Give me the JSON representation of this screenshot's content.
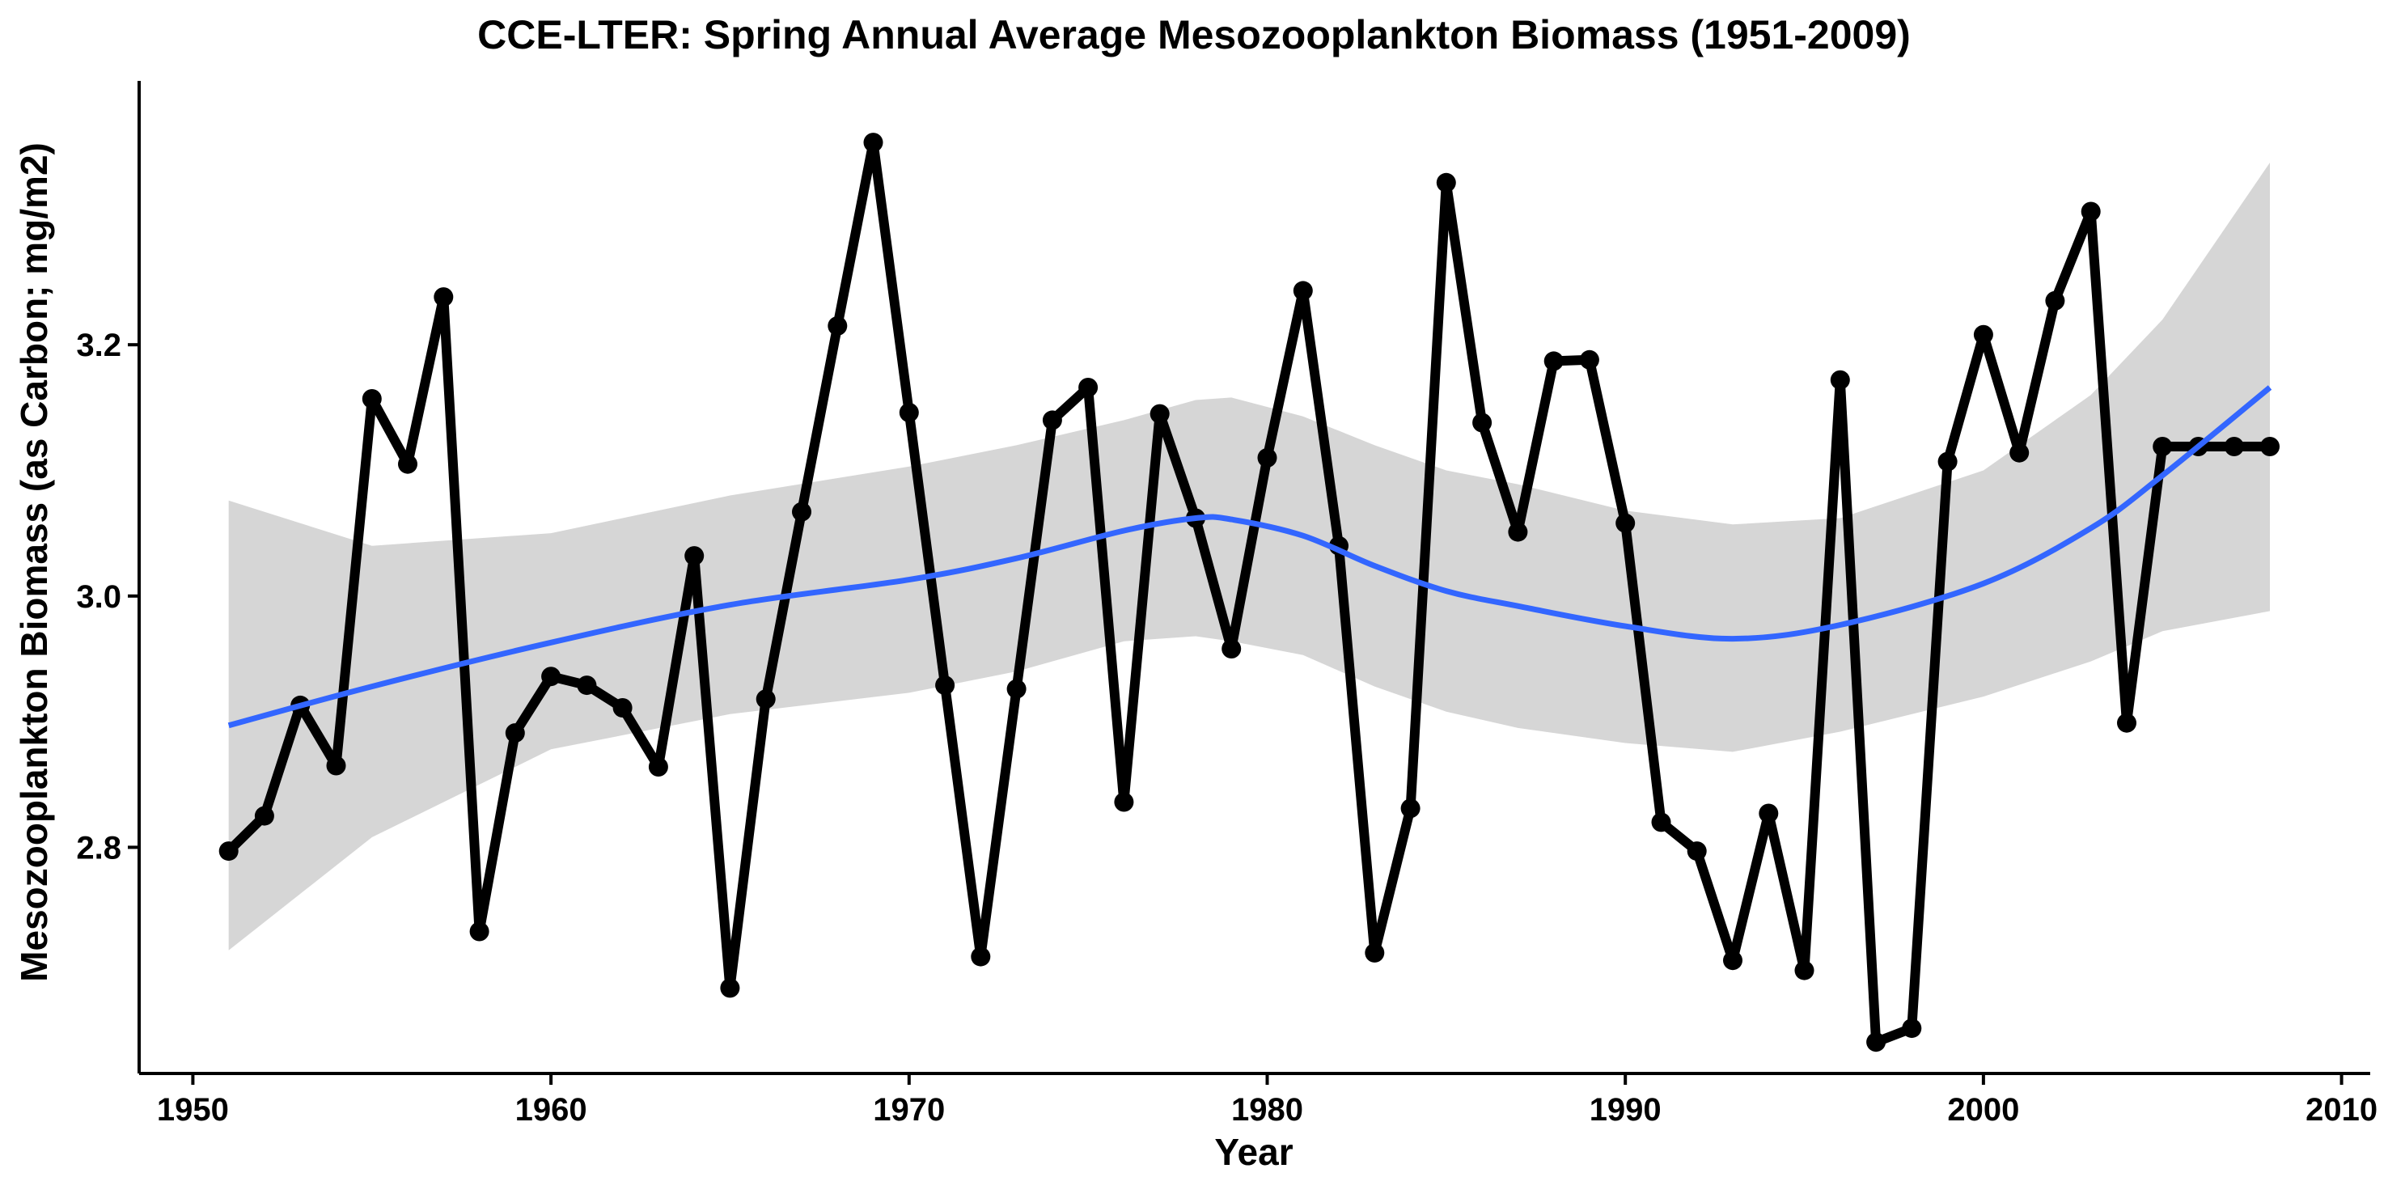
{
  "chart_data": {
    "type": "line",
    "title": "CCE-LTER: Spring Annual Average Mesozooplankton Biomass (1951-2009)",
    "xlabel": "Year",
    "ylabel": "Mesozooplankton Biomass (as Carbon; mg/m2)",
    "xlim": [
      1948.5,
      2010.8
    ],
    "ylim": [
      2.62,
      3.41
    ],
    "x_ticks": [
      1950,
      1960,
      1970,
      1980,
      1990,
      2000,
      2010
    ],
    "y_ticks": [
      2.8,
      3.0,
      3.2
    ],
    "x_tick_labels": [
      "1950",
      "1960",
      "1970",
      "1980",
      "1990",
      "2000",
      "2010"
    ],
    "y_tick_labels": [
      "2.8",
      "3.0",
      "3.2"
    ],
    "grid": false,
    "colors": {
      "observed_line": "#000000",
      "smooth_line": "#3366FF",
      "confidence_band": "#999999"
    },
    "series": [
      {
        "role": "observed",
        "x": [
          1951,
          1952,
          1953,
          1954,
          1955,
          1956,
          1957,
          1958,
          1959,
          1960,
          1961,
          1962,
          1963,
          1964,
          1965,
          1966,
          1967,
          1968,
          1969,
          1970,
          1971,
          1972,
          1973,
          1974,
          1975,
          1976,
          1977,
          1978,
          1979,
          1980,
          1981,
          1982,
          1983,
          1984,
          1985,
          1986,
          1987,
          1988,
          1989,
          1990,
          1991,
          1992,
          1993,
          1994,
          1995,
          1996,
          1997,
          1998,
          1999,
          2000,
          2001,
          2002,
          2003,
          2004,
          2005,
          2006,
          2007,
          2008
        ],
        "values": [
          2.797,
          2.825,
          2.913,
          2.865,
          3.157,
          3.105,
          3.238,
          2.733,
          2.891,
          2.936,
          2.929,
          2.911,
          2.864,
          3.032,
          2.688,
          2.918,
          3.067,
          3.215,
          3.361,
          3.146,
          2.929,
          2.713,
          2.926,
          3.14,
          3.166,
          2.836,
          3.145,
          3.062,
          2.958,
          3.11,
          3.243,
          3.04,
          2.716,
          2.831,
          3.329,
          3.138,
          3.051,
          3.187,
          3.188,
          3.058,
          2.82,
          2.797,
          2.71,
          2.827,
          2.702,
          3.172,
          2.645,
          2.656,
          3.107,
          3.208,
          3.114,
          3.235,
          3.306,
          2.899,
          3.119,
          3.119,
          3.119,
          3.119
        ]
      },
      {
        "role": "smooth",
        "x": [
          1951,
          1955,
          1960,
          1965,
          1970,
          1973,
          1976,
          1978,
          1979,
          1981,
          1983,
          1985,
          1987,
          1990,
          1993,
          1996,
          2000,
          2003,
          2005,
          2008
        ],
        "values": [
          2.897,
          2.928,
          2.963,
          2.993,
          3.013,
          3.03,
          3.052,
          3.062,
          3.061,
          3.048,
          3.024,
          3.004,
          2.992,
          2.976,
          2.966,
          2.977,
          3.01,
          3.054,
          3.096,
          3.166
        ],
        "upper": [
          3.076,
          3.04,
          3.05,
          3.08,
          3.103,
          3.12,
          3.14,
          3.156,
          3.158,
          3.143,
          3.12,
          3.1,
          3.089,
          3.068,
          3.057,
          3.062,
          3.1,
          3.16,
          3.22,
          3.345
        ],
        "lower": [
          2.718,
          2.808,
          2.878,
          2.906,
          2.923,
          2.94,
          2.964,
          2.968,
          2.964,
          2.953,
          2.928,
          2.908,
          2.895,
          2.883,
          2.876,
          2.892,
          2.92,
          2.948,
          2.972,
          2.988
        ]
      }
    ]
  }
}
